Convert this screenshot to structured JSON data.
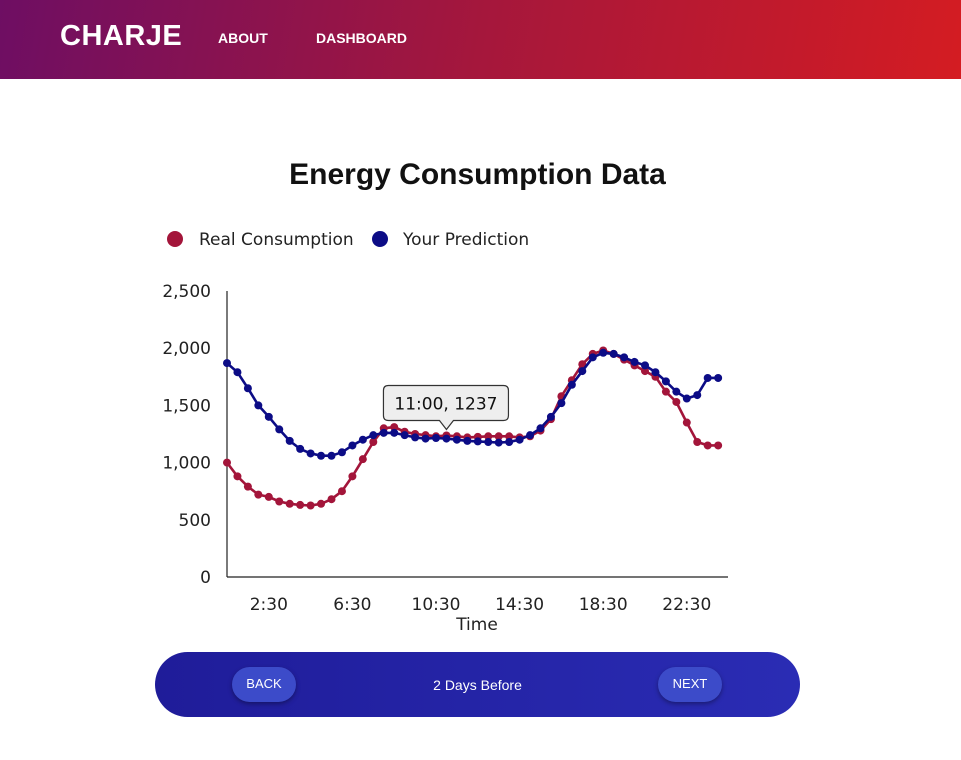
{
  "nav": {
    "brand": "CHARJE",
    "about": "ABOUT",
    "dashboard": "DASHBOARD"
  },
  "pager": {
    "back_label": "BACK",
    "next_label": "NEXT",
    "period_label": "2 Days Before"
  },
  "colors": {
    "real": "#a3153a",
    "prediction": "#0c0c86",
    "axis": "#222222"
  },
  "chart_data": {
    "type": "line",
    "title": "Energy Consumption Data",
    "xlabel": "Time",
    "ylabel": "",
    "ylim": [
      0,
      2500
    ],
    "yticks": [
      0,
      500,
      1000,
      1500,
      2000,
      2500
    ],
    "ytick_labels": [
      "0",
      "500",
      "1,000",
      "1,500",
      "2,000",
      "2,500"
    ],
    "xtick_labels": [
      "2:30",
      "6:30",
      "10:30",
      "14:30",
      "18:30",
      "22:30"
    ],
    "x": [
      "0:30",
      "1:00",
      "1:30",
      "2:00",
      "2:30",
      "3:00",
      "3:30",
      "4:00",
      "4:30",
      "5:00",
      "5:30",
      "6:00",
      "6:30",
      "7:00",
      "7:30",
      "8:00",
      "8:30",
      "9:00",
      "9:30",
      "10:00",
      "10:30",
      "11:00",
      "11:30",
      "12:00",
      "12:30",
      "13:00",
      "13:30",
      "14:00",
      "14:30",
      "15:00",
      "15:30",
      "16:00",
      "16:30",
      "17:00",
      "17:30",
      "18:00",
      "18:30",
      "19:00",
      "19:30",
      "20:00",
      "20:30",
      "21:00",
      "21:30",
      "22:00",
      "22:30",
      "23:00",
      "23:30",
      "0:00"
    ],
    "series": [
      {
        "name": "Real Consumption",
        "values": [
          1000,
          880,
          790,
          720,
          700,
          660,
          640,
          630,
          625,
          640,
          680,
          750,
          880,
          1030,
          1180,
          1300,
          1310,
          1270,
          1250,
          1240,
          1230,
          1237,
          1230,
          1220,
          1225,
          1230,
          1230,
          1230,
          1220,
          1230,
          1280,
          1380,
          1580,
          1720,
          1860,
          1950,
          1980,
          1950,
          1900,
          1850,
          1800,
          1750,
          1620,
          1530,
          1350,
          1180,
          1150,
          1150
        ],
        "color": "#a3153a"
      },
      {
        "name": "Your Prediction",
        "values": [
          1870,
          1790,
          1650,
          1500,
          1400,
          1290,
          1190,
          1120,
          1080,
          1060,
          1060,
          1090,
          1150,
          1200,
          1240,
          1260,
          1260,
          1240,
          1220,
          1210,
          1215,
          1210,
          1200,
          1190,
          1185,
          1180,
          1175,
          1180,
          1200,
          1240,
          1300,
          1400,
          1520,
          1680,
          1800,
          1920,
          1960,
          1950,
          1920,
          1880,
          1850,
          1790,
          1710,
          1620,
          1560,
          1590,
          1740,
          1740
        ],
        "color": "#0c0c86"
      }
    ],
    "tooltip": {
      "label": "11:00, 1237",
      "series": "Real Consumption",
      "index": 21
    }
  }
}
